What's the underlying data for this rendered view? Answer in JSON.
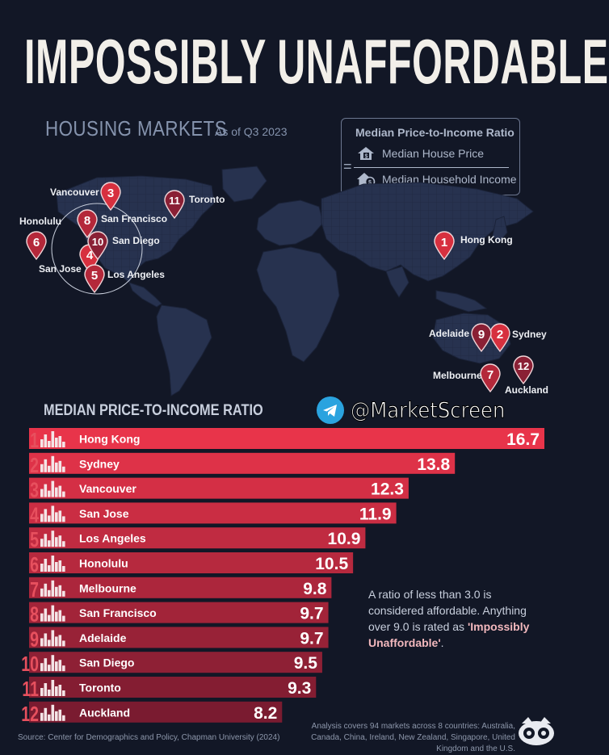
{
  "header": {
    "title": "IMPOSSIBLY UNAFFORDABLE",
    "subtitle": "HOUSING MARKETS",
    "as_of": "As of Q3 2023"
  },
  "formula": {
    "title": "Median Price-to-Income Ratio",
    "equals": "=",
    "numerator": "Median House Price",
    "denominator": "Median Household Income",
    "numerator_icon": "house-dollar-icon",
    "denominator_icon": "house-coin-icon"
  },
  "map": {
    "pins": [
      {
        "rank": "1",
        "city": "Hong Kong"
      },
      {
        "rank": "2",
        "city": "Sydney"
      },
      {
        "rank": "3",
        "city": "Vancouver"
      },
      {
        "rank": "4",
        "city": "San Jose"
      },
      {
        "rank": "5",
        "city": "Los Angeles"
      },
      {
        "rank": "6",
        "city": "Honolulu"
      },
      {
        "rank": "7",
        "city": "Melbourne"
      },
      {
        "rank": "8",
        "city": "San Francisco"
      },
      {
        "rank": "9",
        "city": "Adelaide"
      },
      {
        "rank": "10",
        "city": "San Diego"
      },
      {
        "rank": "11",
        "city": "Toronto"
      },
      {
        "rank": "12",
        "city": "Auckland"
      }
    ]
  },
  "social": {
    "handle": "@MarketScreen",
    "icon": "telegram-icon"
  },
  "chart_data": {
    "type": "bar",
    "orientation": "horizontal",
    "title": "MEDIAN PRICE-TO-INCOME RATIO",
    "categories": [
      "Hong Kong",
      "Sydney",
      "Vancouver",
      "San Jose",
      "Los Angeles",
      "Honolulu",
      "Melbourne",
      "San Francisco",
      "Adelaide",
      "San Diego",
      "Toronto",
      "Auckland"
    ],
    "ranks": [
      "1",
      "2",
      "3",
      "4",
      "5",
      "6",
      "7",
      "8",
      "9",
      "10",
      "11",
      "12"
    ],
    "values": [
      16.7,
      13.8,
      12.3,
      11.9,
      10.9,
      10.5,
      9.8,
      9.7,
      9.7,
      9.5,
      9.3,
      8.2
    ],
    "value_labels": [
      "16.7",
      "13.8",
      "12.3",
      "11.9",
      "10.9",
      "10.5",
      "9.8",
      "9.7",
      "9.7",
      "9.5",
      "9.3",
      "8.2"
    ],
    "colors": {
      "top": "#e8344a",
      "bottom": "#7a1b30"
    },
    "grid": false
  },
  "note": {
    "line1": "A ratio of less than 3.0 is considered affordable. Anything over 9.0 is rated as ",
    "highlight": "'Impossibly Unaffordable'",
    "end": "."
  },
  "footer": {
    "source": "Source: Center for Demographics and Policy, Chapman University (2024)",
    "coverage": "Analysis covers 94 markets across 8 countries: Australia, Canada, China, Ireland, New Zealand, Singapore, United Kingdom and the U.S.",
    "logo": "visual-capitalist-logo"
  }
}
